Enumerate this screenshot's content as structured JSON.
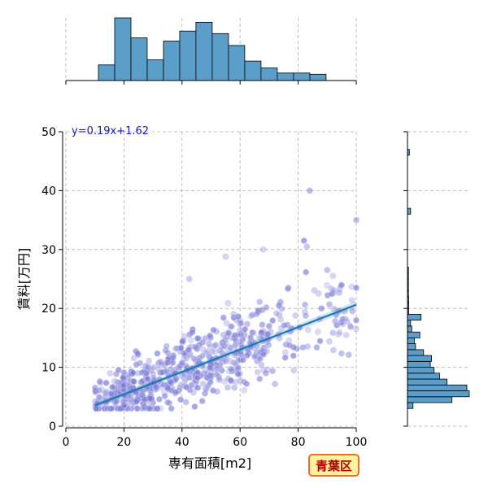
{
  "chart_data": {
    "type": "scatter",
    "title": "",
    "xlabel": "専有面積[m2]",
    "ylabel": "賃料[万円]",
    "xlim": [
      0,
      100
    ],
    "ylim": [
      0,
      50
    ],
    "xticks": [
      "0",
      "20",
      "40",
      "60",
      "80",
      "100"
    ],
    "yticks": [
      "0",
      "10",
      "20",
      "30",
      "40",
      "50"
    ],
    "grid": true,
    "annotation": "y=0.19x+1.62",
    "badge": "青葉区",
    "colors": {
      "points": "#7b7bd6",
      "points_edge": "#c9c9f0",
      "regression": "#1f77b4",
      "histogram": "#5a9ec9",
      "badge_fill": "#fff3a0",
      "badge_border": "#f07020",
      "badge_text": "#b00000"
    },
    "regression": {
      "slope": 0.19,
      "intercept": 1.62,
      "x_range": [
        10,
        100
      ]
    },
    "x_histogram": {
      "bin_edges": [
        0,
        5.6,
        11.2,
        16.8,
        22.4,
        28.0,
        33.6,
        39.2,
        44.8,
        50.4,
        56.0,
        61.6,
        67.2,
        72.8,
        78.4,
        84.0,
        89.6,
        95.2,
        100
      ],
      "relative_heights": [
        0,
        0,
        0.25,
        1.0,
        0.68,
        0.33,
        0.63,
        0.79,
        0.93,
        0.75,
        0.56,
        0.31,
        0.2,
        0.12,
        0.12,
        0.1,
        0,
        0
      ]
    },
    "y_histogram": {
      "bin_edges": [
        3,
        4,
        5,
        6,
        7,
        8,
        9,
        10,
        11,
        12,
        13,
        14,
        15,
        16,
        17,
        18,
        19,
        20,
        21,
        22,
        23,
        24,
        25,
        26,
        27,
        28,
        29,
        30,
        31,
        32,
        33,
        34,
        35,
        36,
        37,
        38,
        39,
        40,
        41,
        42,
        43,
        44,
        45,
        46,
        47,
        48
      ],
      "relative_heights": [
        0.09,
        0.72,
        1.0,
        0.96,
        0.64,
        0.52,
        0.43,
        0.37,
        0.39,
        0.26,
        0.13,
        0.11,
        0.2,
        0.07,
        0.05,
        0.22,
        0.02,
        0.02,
        0.02,
        0.01,
        0.01,
        0.01,
        0.01,
        0.01,
        0,
        0,
        0,
        0,
        0,
        0,
        0,
        0,
        0,
        0.05,
        0,
        0,
        0,
        0,
        0,
        0,
        0,
        0,
        0,
        0.03,
        0
      ]
    },
    "outliers": [
      [
        42.5,
        25
      ],
      [
        55,
        28.8
      ],
      [
        68,
        30
      ],
      [
        82,
        31.5
      ],
      [
        83,
        30.5
      ],
      [
        84,
        40
      ],
      [
        90,
        26.5
      ],
      [
        92,
        25.5
      ],
      [
        95,
        24
      ],
      [
        100,
        35
      ],
      [
        100,
        23.5
      ],
      [
        98,
        17
      ],
      [
        100,
        18
      ],
      [
        100,
        16.5
      ],
      [
        96,
        19.5
      ],
      [
        88,
        20
      ]
    ],
    "point_generator": {
      "count": 620,
      "x_min": 10,
      "x_max": 99,
      "noise": 2.8,
      "column_x": 20,
      "column_count": 22
    }
  }
}
